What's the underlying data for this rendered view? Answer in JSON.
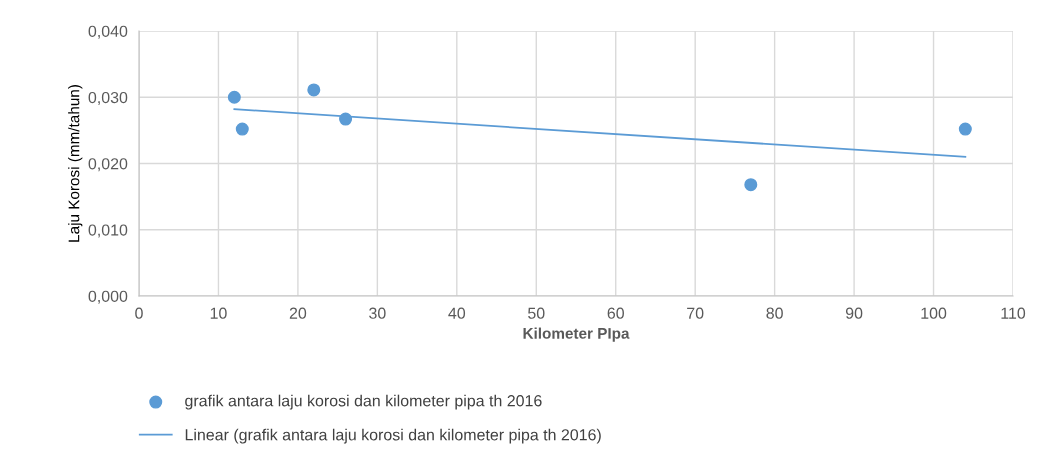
{
  "chart_data": {
    "type": "scatter",
    "xlabel": "Kilometer PIpa",
    "ylabel": "Laju Korosi (mm/tahun)",
    "series": [
      {
        "name": "grafik antara laju korosi dan kilometer pipa th 2016",
        "marker": "circle",
        "color": "#5b9bd5",
        "x": [
          12,
          13,
          22,
          26,
          77,
          104
        ],
        "values": [
          0.03,
          0.0252,
          0.0311,
          0.0267,
          0.0168,
          0.0252
        ]
      },
      {
        "name": "Linear (grafik antara laju korosi dan kilometer pipa th 2016)",
        "type": "line",
        "marker": "none",
        "color": "#5b9bd5",
        "x": [
          12,
          104
        ],
        "values": [
          0.0282,
          0.021
        ]
      }
    ],
    "xlim": [
      0,
      110
    ],
    "xticks": [
      0,
      10,
      20,
      30,
      40,
      50,
      60,
      70,
      80,
      90,
      100,
      110
    ],
    "ylim": [
      0,
      0.04
    ],
    "yticks": [
      {
        "value": 0,
        "label": "0,000"
      },
      {
        "value": 0.01,
        "label": "0,010"
      },
      {
        "value": 0.02,
        "label": "0,020"
      },
      {
        "value": 0.03,
        "label": "0,030"
      },
      {
        "value": 0.04,
        "label": "0,040"
      }
    ],
    "grid": true,
    "legend": "bottom",
    "line_style": "solid"
  }
}
